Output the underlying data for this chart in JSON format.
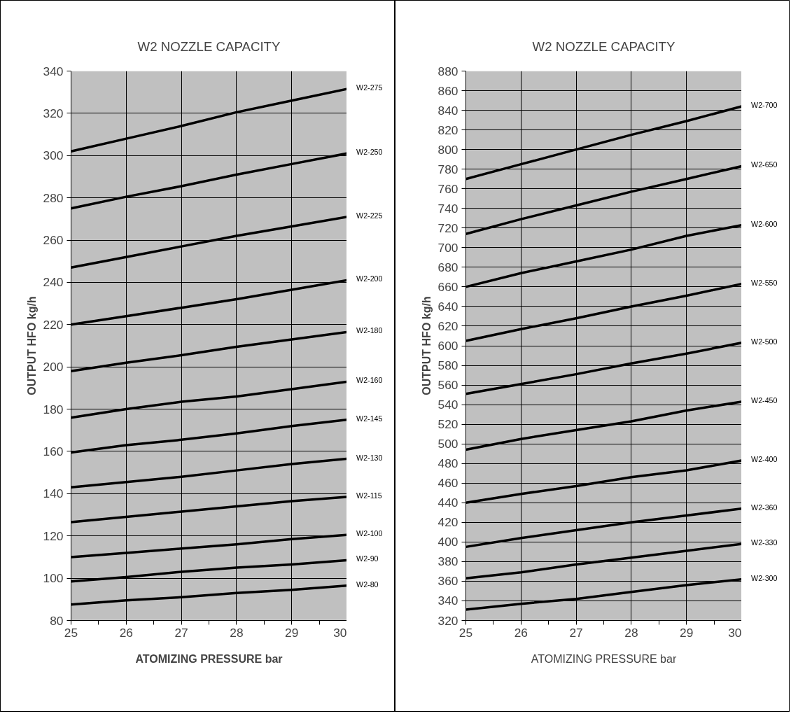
{
  "chart_data": [
    {
      "type": "line",
      "title": "W2 NOZZLE CAPACITY",
      "xlabel": "ATOMIZING PRESSURE bar",
      "ylabel": "OUTPUT HFO kg/h",
      "x": [
        25,
        26,
        27,
        28,
        29,
        30
      ],
      "xlim": [
        25,
        30
      ],
      "xticks": [
        25,
        26,
        27,
        28,
        29,
        30
      ],
      "ylim": [
        80,
        340
      ],
      "yticks": [
        80,
        100,
        120,
        140,
        160,
        180,
        200,
        220,
        240,
        260,
        280,
        300,
        320,
        340
      ],
      "grid": true,
      "marker": "none",
      "line_style": "solid",
      "series": [
        {
          "name": "W2-275",
          "color": "#000000",
          "values": [
            302,
            308,
            314,
            320.5,
            326,
            331.5
          ]
        },
        {
          "name": "W2-250",
          "color": "#000000",
          "values": [
            275,
            280.5,
            285.5,
            291,
            296,
            301
          ]
        },
        {
          "name": "W2-225",
          "color": "#000000",
          "values": [
            247,
            252,
            257,
            262,
            266.5,
            271
          ]
        },
        {
          "name": "W2-200",
          "color": "#000000",
          "values": [
            220,
            224,
            228,
            232,
            236.5,
            241
          ]
        },
        {
          "name": "W2-180",
          "color": "#000000",
          "values": [
            198,
            202,
            205.5,
            209.5,
            213,
            216.5
          ]
        },
        {
          "name": "W2-160",
          "color": "#000000",
          "values": [
            176,
            180,
            183.5,
            186,
            189.5,
            193
          ]
        },
        {
          "name": "W2-145",
          "color": "#000000",
          "values": [
            159.5,
            163,
            165.5,
            168.5,
            172,
            175
          ]
        },
        {
          "name": "W2-130",
          "color": "#000000",
          "values": [
            143,
            145.5,
            148,
            151,
            154,
            156.5
          ]
        },
        {
          "name": "W2-115",
          "color": "#000000",
          "values": [
            126.5,
            129,
            131.5,
            134,
            136.5,
            138.5
          ]
        },
        {
          "name": "W2-100",
          "color": "#000000",
          "values": [
            110,
            112,
            114,
            116,
            118.5,
            120.5
          ]
        },
        {
          "name": "W2-90",
          "color": "#000000",
          "values": [
            98.5,
            100.5,
            103,
            105,
            106.5,
            108.5
          ]
        },
        {
          "name": "W2-80",
          "color": "#000000",
          "values": [
            87.5,
            89.5,
            91,
            93,
            94.5,
            96.5
          ]
        }
      ]
    },
    {
      "type": "line",
      "title": "W2 NOZZLE CAPACITY",
      "xlabel": "ATOMIZING PRESSURE bar",
      "ylabel": "OUTPUT HFO kg/h",
      "x": [
        25,
        26,
        27,
        28,
        29,
        30
      ],
      "xlim": [
        25,
        30
      ],
      "xticks": [
        25,
        26,
        27,
        28,
        29,
        30
      ],
      "ylim": [
        320,
        880
      ],
      "yticks": [
        320,
        340,
        360,
        380,
        400,
        420,
        440,
        460,
        480,
        500,
        520,
        540,
        560,
        580,
        600,
        620,
        640,
        660,
        680,
        700,
        720,
        740,
        760,
        780,
        800,
        820,
        840,
        860,
        880
      ],
      "grid": true,
      "marker": "none",
      "line_style": "solid",
      "series": [
        {
          "name": "W2-700",
          "color": "#000000",
          "values": [
            770,
            785,
            800,
            815,
            829,
            844
          ]
        },
        {
          "name": "W2-650",
          "color": "#000000",
          "values": [
            714,
            729,
            743,
            757,
            770,
            783
          ]
        },
        {
          "name": "W2-600",
          "color": "#000000",
          "values": [
            660,
            674,
            686,
            698,
            712,
            723
          ]
        },
        {
          "name": "W2-550",
          "color": "#000000",
          "values": [
            605,
            617,
            628,
            640,
            651,
            663
          ]
        },
        {
          "name": "W2-500",
          "color": "#000000",
          "values": [
            551,
            561,
            571,
            582,
            592,
            603
          ]
        },
        {
          "name": "W2-450",
          "color": "#000000",
          "values": [
            494,
            505,
            514,
            523,
            534,
            543
          ]
        },
        {
          "name": "W2-400",
          "color": "#000000",
          "values": [
            440,
            449,
            457,
            466,
            473,
            483
          ]
        },
        {
          "name": "W2-360",
          "color": "#000000",
          "values": [
            395,
            404,
            412,
            420,
            427,
            434
          ]
        },
        {
          "name": "W2-330",
          "color": "#000000",
          "values": [
            363,
            369,
            377,
            384,
            391,
            398
          ]
        },
        {
          "name": "W2-300",
          "color": "#000000",
          "values": [
            331,
            337,
            342,
            349,
            356,
            362
          ]
        }
      ]
    }
  ]
}
